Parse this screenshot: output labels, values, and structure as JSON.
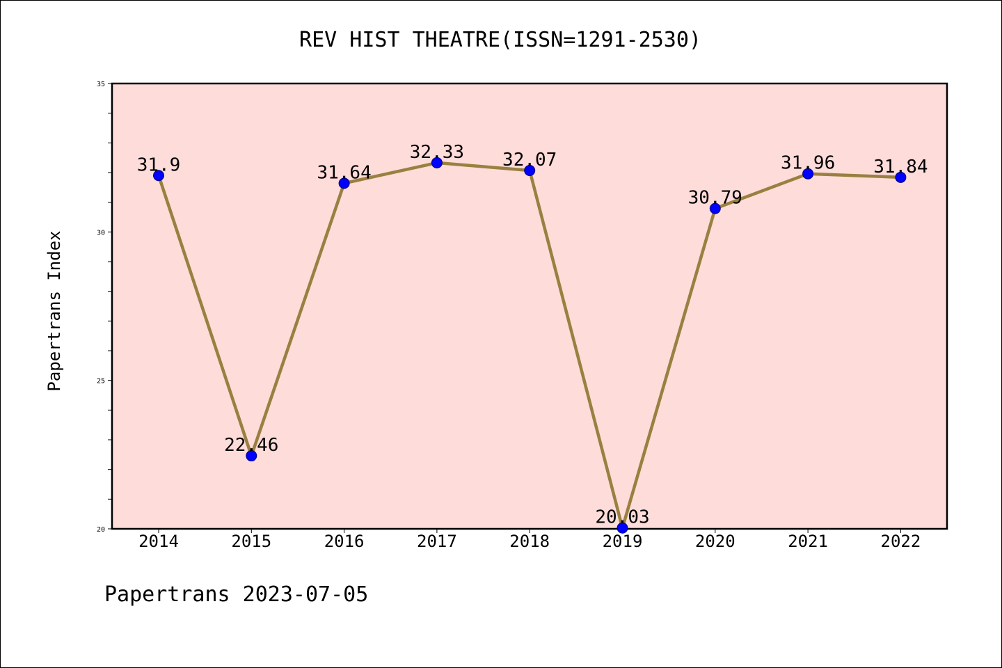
{
  "chart_data": {
    "type": "line",
    "title": "REV HIST THEATRE(ISSN=1291-2530)",
    "xlabel": "",
    "ylabel": "Papertrans Index",
    "categories": [
      "2014",
      "2015",
      "2016",
      "2017",
      "2018",
      "2019",
      "2020",
      "2021",
      "2022"
    ],
    "values": [
      31.9,
      22.46,
      31.64,
      32.33,
      32.07,
      20.03,
      30.79,
      31.96,
      31.84
    ],
    "data_labels": [
      "31.9",
      "22.46",
      "31.64",
      "32.33",
      "32.07",
      "20.03",
      "30.79",
      "31.96",
      "31.84"
    ],
    "ylim": [
      20,
      35
    ],
    "yticks": [
      20,
      25,
      30,
      35
    ],
    "ytick_labels": [
      "20",
      "25",
      "30",
      "35"
    ],
    "grid": false,
    "legend": "none",
    "colors": {
      "plot_background": "#fddcda",
      "line": "#9a8040",
      "marker": "#0000ff"
    }
  },
  "footer": "Papertrans 2023-07-05"
}
